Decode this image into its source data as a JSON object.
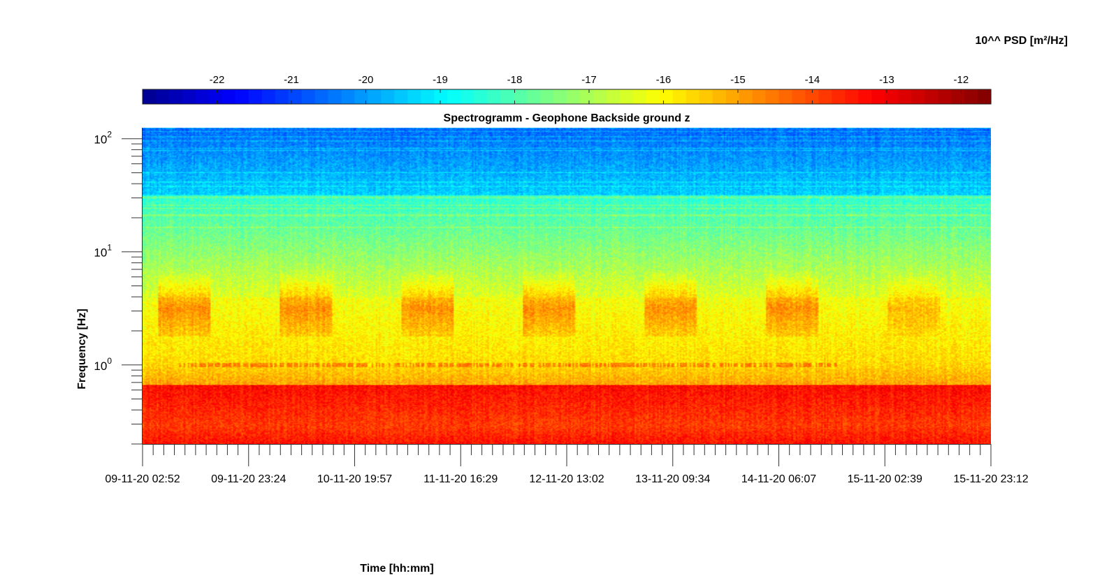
{
  "chart_data": {
    "type": "heatmap",
    "title": "Spectrogramm - Geophone Backside ground z",
    "xlabel": "Time [hh:mm]",
    "ylabel": "Frequency [Hz]",
    "y_scale": "log",
    "ylim": [
      0.2,
      125
    ],
    "y_major_ticks": [
      {
        "value": 1,
        "base": "10",
        "exp": "0"
      },
      {
        "value": 10,
        "base": "10",
        "exp": "1"
      },
      {
        "value": 100,
        "base": "10",
        "exp": "2"
      }
    ],
    "x_tick_labels": [
      "09-11-20 02:52",
      "09-11-20 23:24",
      "10-11-20 19:57",
      "11-11-20 16:29",
      "12-11-20 13:02",
      "13-11-20 09:34",
      "14-11-20 06:07",
      "15-11-20 02:39",
      "15-11-20 23:12"
    ],
    "x_minor_ticks_per_major": 10,
    "colorbar": {
      "label": "10^^ PSD [m²/Hz]",
      "range": [
        -23,
        -11.6
      ],
      "ticks": [
        -22,
        -21,
        -20,
        -19,
        -18,
        -17,
        -16,
        -15,
        -14,
        -13,
        -12
      ],
      "colormap": "jet"
    },
    "colors": {
      "jet_stops": [
        "#00008f",
        "#0000ff",
        "#00ffff",
        "#ffff00",
        "#ff0000",
        "#800000"
      ]
    }
  }
}
